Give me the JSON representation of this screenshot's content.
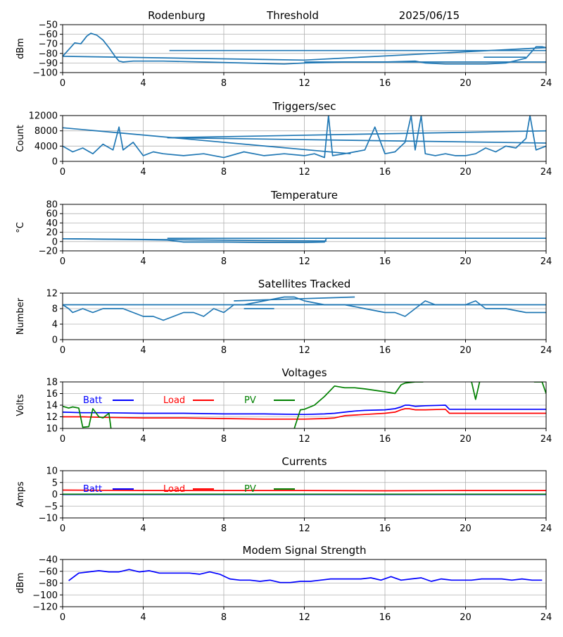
{
  "header": {
    "site": "Rodenburg",
    "mode": "Threshold",
    "date": "2025/06/15"
  },
  "chart_data": [
    {
      "id": "threshold",
      "type": "line",
      "title": "",
      "xlabel": "",
      "ylabel": "dBm",
      "xlim": [
        0,
        24
      ],
      "ylim": [
        -100,
        -50
      ],
      "xticks": [
        "0",
        "4",
        "8",
        "12",
        "16",
        "20",
        "24"
      ],
      "yticks": [
        "−100",
        "−90",
        "−80",
        "−70",
        "−60",
        "−50"
      ],
      "ytick_values": [
        -100,
        -90,
        -80,
        -70,
        -60,
        -50
      ],
      "grid": true,
      "colors": [
        "#1f77b4"
      ],
      "series": [
        {
          "x": [
            0.0,
            0.3,
            0.6,
            0.9,
            1.2,
            1.4,
            1.7,
            2.0,
            2.3,
            2.6,
            2.8,
            3.0,
            3.5,
            5.0,
            7.0,
            9.0,
            11.0,
            12.0,
            14.0,
            16.0,
            17.5,
            18.0,
            19.0,
            20.0,
            21.0,
            22.0,
            23.0,
            23.5,
            23.8,
            24.0,
            12.0,
            0.0
          ],
          "y": [
            -83,
            -76,
            -69,
            -70,
            -62,
            -59,
            -61,
            -66,
            -74,
            -83,
            -88,
            -89,
            -88,
            -88,
            -89,
            -90,
            -91,
            -90,
            -89,
            -89,
            -88,
            -90,
            -91,
            -91,
            -91,
            -90,
            -85,
            -73,
            -73,
            -74,
            -87,
            -83
          ]
        },
        {
          "x": [
            5.3,
            24
          ],
          "y": [
            -77,
            -77
          ]
        },
        {
          "x": [
            20.9,
            23.0
          ],
          "y": [
            -84,
            -84
          ]
        },
        {
          "x": [
            12.0,
            24
          ],
          "y": [
            -89,
            -89
          ]
        }
      ]
    },
    {
      "id": "triggers",
      "type": "line",
      "title": "Triggers/sec",
      "xlabel": "",
      "ylabel": "Count",
      "xlim": [
        0,
        24
      ],
      "ylim": [
        0,
        12000
      ],
      "xticks": [
        "0",
        "4",
        "8",
        "12",
        "16",
        "20",
        "24"
      ],
      "yticks": [
        "0",
        "4000",
        "8000",
        "12000"
      ],
      "ytick_values": [
        0,
        4000,
        8000,
        12000
      ],
      "grid": true,
      "colors": [
        "#1f77b4"
      ],
      "series": [
        {
          "x": [
            0,
            0.5,
            1,
            1.5,
            2,
            2.5,
            2.8,
            3,
            3.5,
            4,
            4.5,
            5,
            6,
            7,
            8,
            9,
            10,
            11,
            12,
            12.5,
            13,
            13.2,
            13.4,
            14,
            14.5,
            15,
            15.5,
            16,
            16.5,
            17,
            17.3,
            17.5,
            17.8,
            18,
            18.5,
            19,
            19.5,
            20,
            20.5,
            21,
            21.5,
            22,
            22.5,
            23,
            23.2,
            23.5,
            24
          ],
          "y": [
            4000,
            2500,
            3500,
            2000,
            4500,
            3000,
            9000,
            3000,
            5000,
            1500,
            2500,
            2000,
            1500,
            2000,
            1000,
            2500,
            1500,
            2000,
            1500,
            2000,
            1000,
            12000,
            1500,
            2000,
            2500,
            3000,
            9000,
            2000,
            2500,
            5000,
            12000,
            3000,
            12000,
            2000,
            1500,
            2000,
            1500,
            1500,
            2000,
            3500,
            2500,
            4000,
            3500,
            6000,
            12000,
            3000,
            4000
          ]
        },
        {
          "x": [
            0,
            14.3
          ],
          "y": [
            8800,
            2000
          ]
        },
        {
          "x": [
            5.2,
            24
          ],
          "y": [
            6200,
            8000
          ]
        },
        {
          "x": [
            5.2,
            24
          ],
          "y": [
            6200,
            4800
          ]
        }
      ]
    },
    {
      "id": "temperature",
      "type": "line",
      "title": "Temperature",
      "xlabel": "",
      "ylabel": "°C",
      "xlim": [
        0,
        24
      ],
      "ylim": [
        -20,
        80
      ],
      "xticks": [
        "0",
        "4",
        "8",
        "12",
        "16",
        "20",
        "24"
      ],
      "yticks": [
        "−20",
        "0",
        "20",
        "40",
        "60",
        "80"
      ],
      "ytick_values": [
        -20,
        0,
        20,
        40,
        60,
        80
      ],
      "grid": true,
      "colors": [
        "#1f77b4"
      ],
      "series": [
        {
          "x": [
            0,
            2,
            4,
            5.2,
            6,
            8,
            10,
            12,
            13,
            13.1,
            24
          ],
          "y": [
            6,
            5,
            4,
            3,
            -1,
            -1,
            -2,
            -2,
            -1,
            7,
            7
          ]
        },
        {
          "x": [
            5.2,
            24
          ],
          "y": [
            7,
            7
          ]
        },
        {
          "x": [
            0,
            13.1
          ],
          "y": [
            6,
            1
          ]
        }
      ]
    },
    {
      "id": "satellites",
      "type": "line",
      "title": "Satellites Tracked",
      "xlabel": "",
      "ylabel": "Number",
      "xlim": [
        0,
        24
      ],
      "ylim": [
        0,
        12
      ],
      "xticks": [
        "0",
        "4",
        "8",
        "12",
        "16",
        "20",
        "24"
      ],
      "yticks": [
        "0",
        "4",
        "8",
        "12"
      ],
      "ytick_values": [
        0,
        4,
        8,
        12
      ],
      "grid": true,
      "colors": [
        "#1f77b4"
      ],
      "series": [
        {
          "x": [
            0,
            0.3,
            0.5,
            1,
            1.5,
            2,
            3,
            3.5,
            4,
            4.5,
            5,
            6,
            6.5,
            7,
            7.5,
            8,
            8.5,
            9,
            10,
            11,
            11.5,
            12,
            13,
            14,
            15,
            16,
            16.5,
            17,
            17.5,
            18,
            18.5,
            19,
            20,
            20.5,
            21,
            22,
            23,
            24
          ],
          "y": [
            9,
            8,
            7,
            8,
            7,
            8,
            8,
            7,
            6,
            6,
            5,
            7,
            7,
            6,
            8,
            7,
            9,
            9,
            10,
            11,
            11,
            10,
            9,
            9,
            8,
            7,
            7,
            6,
            8,
            10,
            9,
            9,
            9,
            10,
            8,
            8,
            7,
            7
          ]
        },
        {
          "x": [
            0,
            24
          ],
          "y": [
            9,
            9
          ]
        },
        {
          "x": [
            8.5,
            14.5
          ],
          "y": [
            10,
            11
          ]
        },
        {
          "x": [
            9.0,
            10.5
          ],
          "y": [
            8,
            8
          ]
        }
      ]
    },
    {
      "id": "voltages",
      "type": "line",
      "title": "Voltages",
      "xlabel": "",
      "ylabel": "Volts",
      "xlim": [
        0,
        24
      ],
      "ylim": [
        10,
        18
      ],
      "xticks": [
        "0",
        "4",
        "8",
        "12",
        "16",
        "20",
        "24"
      ],
      "yticks": [
        "10",
        "12",
        "14",
        "16",
        "18"
      ],
      "ytick_values": [
        10,
        12,
        14,
        16,
        18
      ],
      "grid": true,
      "legend": [
        {
          "label": "Batt",
          "color": "#0000ff"
        },
        {
          "label": "Load",
          "color": "#ff0000"
        },
        {
          "label": "PV",
          "color": "#008000"
        }
      ],
      "series": [
        {
          "name": "Batt",
          "color": "#0000ff",
          "x": [
            0,
            1,
            2,
            4,
            6,
            8,
            10,
            12,
            13,
            13.5,
            14,
            14.5,
            15,
            16,
            16.5,
            16.8,
            17,
            17.2,
            17.5,
            18,
            19,
            19.2,
            19.5,
            20,
            20.5,
            21,
            22,
            23,
            24
          ],
          "y": [
            12.8,
            12.7,
            12.7,
            12.6,
            12.6,
            12.5,
            12.5,
            12.4,
            12.5,
            12.6,
            12.8,
            13.0,
            13.1,
            13.2,
            13.4,
            13.7,
            14.0,
            14.0,
            13.8,
            13.9,
            14.0,
            13.3,
            13.3,
            13.3,
            13.3,
            13.3,
            13.3,
            13.3,
            13.3
          ]
        },
        {
          "name": "Load",
          "color": "#ff0000",
          "x": [
            0,
            1,
            2,
            4,
            6,
            8,
            10,
            12,
            13,
            13.5,
            14,
            15,
            16,
            16.5,
            16.8,
            17,
            17.2,
            17.5,
            18,
            19,
            19.2,
            19.5,
            20,
            20.5,
            21,
            22,
            23,
            24
          ],
          "y": [
            12.0,
            12.0,
            11.9,
            11.8,
            11.8,
            11.7,
            11.6,
            11.6,
            11.7,
            11.8,
            12.2,
            12.4,
            12.6,
            12.8,
            13.2,
            13.4,
            13.4,
            13.2,
            13.2,
            13.3,
            12.6,
            12.6,
            12.6,
            12.6,
            12.6,
            12.6,
            12.6,
            12.6
          ]
        },
        {
          "name": "PV",
          "color": "#008000",
          "x": [
            0,
            0.3,
            0.5,
            0.8,
            1,
            1.3,
            1.5,
            1.8,
            2,
            2.3,
            2.4
          ],
          "y": [
            13.8,
            13.5,
            13.7,
            13.5,
            10.2,
            10.3,
            13.4,
            12.0,
            11.8,
            12.6,
            10.0
          ]
        },
        {
          "name": "PV",
          "color": "#008000",
          "x": [
            11.5,
            11.8,
            12,
            12.5,
            13,
            13.5,
            14,
            14.5,
            15,
            16,
            16.5,
            16.8,
            17,
            17.5,
            17.9
          ],
          "y": [
            10.0,
            13.2,
            13.3,
            14.0,
            15.5,
            17.3,
            17.0,
            17.0,
            16.8,
            16.3,
            16.0,
            17.5,
            17.8,
            18.0,
            18.0
          ]
        },
        {
          "name": "PV",
          "color": "#008000",
          "x": [
            20.3,
            20.5,
            20.7
          ],
          "y": [
            18.0,
            15.0,
            18.0
          ]
        },
        {
          "name": "PV",
          "color": "#008000",
          "x": [
            23.4,
            23.8,
            24
          ],
          "y": [
            18.0,
            18.0,
            16.0
          ]
        }
      ]
    },
    {
      "id": "currents",
      "type": "line",
      "title": "Currents",
      "xlabel": "",
      "ylabel": "Amps",
      "xlim": [
        0,
        24
      ],
      "ylim": [
        -10,
        10
      ],
      "xticks": [
        "0",
        "4",
        "8",
        "12",
        "16",
        "20",
        "24"
      ],
      "yticks": [
        "−10",
        "−5",
        "0",
        "5",
        "10"
      ],
      "ytick_values": [
        -10,
        -5,
        0,
        5,
        10
      ],
      "grid": true,
      "legend": [
        {
          "label": "Batt",
          "color": "#0000ff"
        },
        {
          "label": "Load",
          "color": "#ff0000"
        },
        {
          "label": "PV",
          "color": "#008000"
        }
      ],
      "series": [
        {
          "name": "Batt",
          "color": "#0000ff",
          "x": [
            0,
            24
          ],
          "y": [
            -0.1,
            -0.1
          ]
        },
        {
          "name": "Load",
          "color": "#ff0000",
          "x": [
            0,
            2,
            4,
            8,
            12,
            16,
            20,
            24
          ],
          "y": [
            1.8,
            1.7,
            1.6,
            1.6,
            1.6,
            1.5,
            1.6,
            1.6
          ]
        },
        {
          "name": "PV",
          "color": "#008000",
          "x": [
            0,
            24
          ],
          "y": [
            0.05,
            0.05
          ]
        }
      ]
    },
    {
      "id": "modem",
      "type": "line",
      "title": "Modem Signal Strength",
      "xlabel": "",
      "ylabel": "dBm",
      "xlim": [
        0,
        24
      ],
      "ylim": [
        -120,
        -40
      ],
      "xticks": [
        "0",
        "4",
        "8",
        "12",
        "16",
        "20",
        "24"
      ],
      "yticks": [
        "−120",
        "−100",
        "−80",
        "−60",
        "−40"
      ],
      "ytick_values": [
        -120,
        -100,
        -80,
        -60,
        -40
      ],
      "grid": true,
      "series": [
        {
          "color": "#0000ff",
          "x": [
            0.3,
            0.8,
            1.3,
            1.8,
            2.3,
            2.8,
            3.3,
            3.8,
            4.3,
            4.8,
            5.3,
            5.8,
            6.3,
            6.8,
            7.3,
            7.8,
            8.3,
            8.8,
            9.3,
            9.8,
            10.3,
            10.8,
            11.3,
            11.8,
            12.3,
            12.8,
            13.3,
            13.8,
            14.3,
            14.8,
            15.3,
            15.8,
            16.3,
            16.8,
            17.3,
            17.8,
            18.3,
            18.8,
            19.3,
            19.8,
            20.3,
            20.8,
            21.3,
            21.8,
            22.3,
            22.8,
            23.3,
            23.8
          ],
          "y": [
            -76,
            -63,
            -61,
            -59,
            -61,
            -61,
            -57,
            -61,
            -59,
            -63,
            -63,
            -63,
            -63,
            -65,
            -61,
            -65,
            -73,
            -75,
            -75,
            -77,
            -75,
            -79,
            -79,
            -77,
            -77,
            -75,
            -73,
            -73,
            -73,
            -73,
            -71,
            -75,
            -69,
            -75,
            -73,
            -71,
            -77,
            -73,
            -75,
            -75,
            -75,
            -73,
            -73,
            -73,
            -75,
            -73,
            -75,
            -75
          ]
        }
      ]
    }
  ]
}
